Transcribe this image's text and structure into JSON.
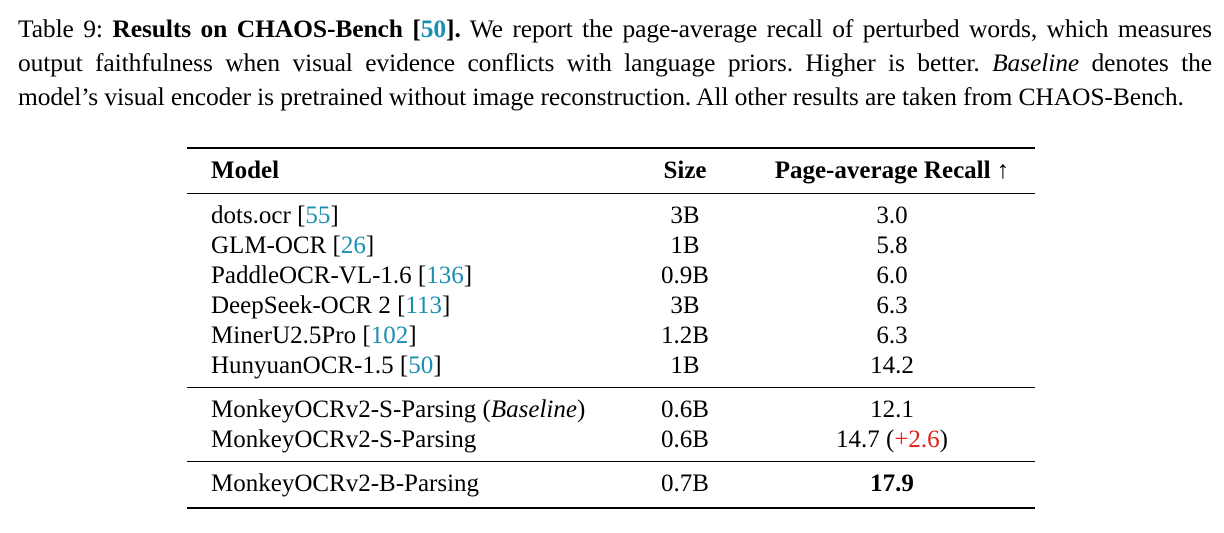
{
  "caption": {
    "label": "Table 9:",
    "title_bold": "Results on CHAOS-Bench [",
    "title_cite": "50",
    "title_close": "].",
    "text_1": " We report the page-average recall of perturbed words, which measures output faithfulness when visual evidence conflicts with language priors. Higher is better. ",
    "italic_baseline": "Baseline",
    "text_2": " denotes the model’s visual encoder is pretrained without image reconstruction. All other results are taken from CHAOS-Bench."
  },
  "table": {
    "headers": {
      "model": "Model",
      "size": "Size",
      "recall": "Page-average Recall ↑"
    },
    "group1": [
      {
        "model": "dots.ocr [",
        "cite": "55",
        "close": "]",
        "size": "3B",
        "recall": "3.0"
      },
      {
        "model": "GLM-OCR [",
        "cite": "26",
        "close": "]",
        "size": "1B",
        "recall": "5.8"
      },
      {
        "model": "PaddleOCR-VL-1.6 [",
        "cite": "136",
        "close": "]",
        "size": "0.9B",
        "recall": "6.0"
      },
      {
        "model": "DeepSeek-OCR 2 [",
        "cite": "113",
        "close": "]",
        "size": "3B",
        "recall": "6.3"
      },
      {
        "model": "MinerU2.5Pro [",
        "cite": "102",
        "close": "]",
        "size": "1.2B",
        "recall": "6.3"
      },
      {
        "model": "HunyuanOCR-1.5 [",
        "cite": "50",
        "close": "]",
        "size": "1B",
        "recall": "14.2"
      }
    ],
    "group2": [
      {
        "model": "MonkeyOCRv2-S-Parsing (",
        "italic": "Baseline",
        "close": ")",
        "size": "0.6B",
        "recall": "12.1"
      },
      {
        "model": "MonkeyOCRv2-S-Parsing",
        "size": "0.6B",
        "recall": "14.7 (",
        "delta": "+2.6",
        "recall_close": ")"
      }
    ],
    "group3": [
      {
        "model": "MonkeyOCRv2-B-Parsing",
        "size": "0.7B",
        "recall": "17.9"
      }
    ]
  }
}
